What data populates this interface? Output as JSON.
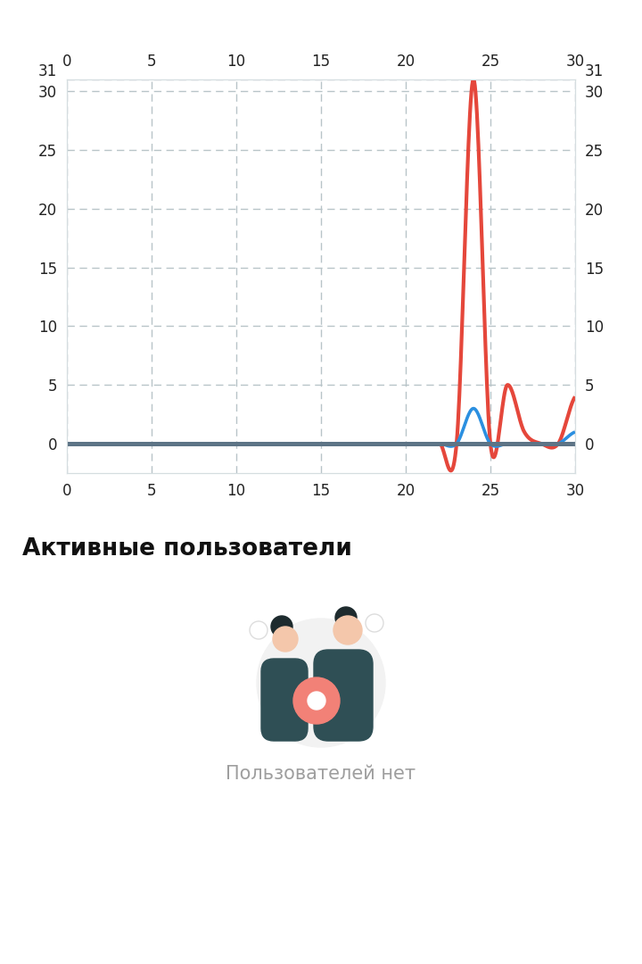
{
  "chart_data": {
    "type": "line",
    "x": [
      0,
      1,
      2,
      3,
      4,
      5,
      6,
      7,
      8,
      9,
      10,
      11,
      12,
      13,
      14,
      15,
      16,
      17,
      18,
      19,
      20,
      21,
      22,
      23,
      24,
      25,
      26,
      27,
      28,
      29,
      30
    ],
    "xlim": [
      0,
      30
    ],
    "xticks": [
      0,
      5,
      10,
      15,
      20,
      25,
      30
    ],
    "ylim": [
      -2.5,
      31
    ],
    "yticks": [
      0,
      5,
      10,
      15,
      20,
      25,
      30,
      31
    ],
    "y2lim": [
      -2.5,
      31
    ],
    "y2ticks": [
      0,
      5,
      10,
      15,
      20,
      25,
      30,
      31
    ],
    "grid": true,
    "series": [
      {
        "color": "#e5473b",
        "line_style": "solid",
        "values": [
          0,
          0,
          0,
          0,
          0,
          0,
          0,
          0,
          0,
          0,
          0,
          0,
          0,
          0,
          0,
          0,
          0,
          0,
          0,
          0,
          0,
          0,
          0,
          0,
          31,
          0,
          5,
          1,
          0,
          0,
          4
        ]
      },
      {
        "color": "#2b8fe0",
        "line_style": "solid",
        "values": [
          0,
          0,
          0,
          0,
          0,
          0,
          0,
          0,
          0,
          0,
          0,
          0,
          0,
          0,
          0,
          0,
          0,
          0,
          0,
          0,
          0,
          0,
          0,
          0,
          3,
          0,
          0,
          0,
          0,
          0,
          1
        ]
      },
      {
        "color": "#5d7486",
        "line_style": "solid",
        "values": [
          0,
          0,
          0,
          0,
          0,
          0,
          0,
          0,
          0,
          0,
          0,
          0,
          0,
          0,
          0,
          0,
          0,
          0,
          0,
          0,
          0,
          0,
          0,
          0,
          0,
          0,
          0,
          0,
          0,
          0,
          0
        ]
      }
    ]
  },
  "section": {
    "title": "Активные пользователи",
    "empty_state": "Пользователей нет"
  }
}
